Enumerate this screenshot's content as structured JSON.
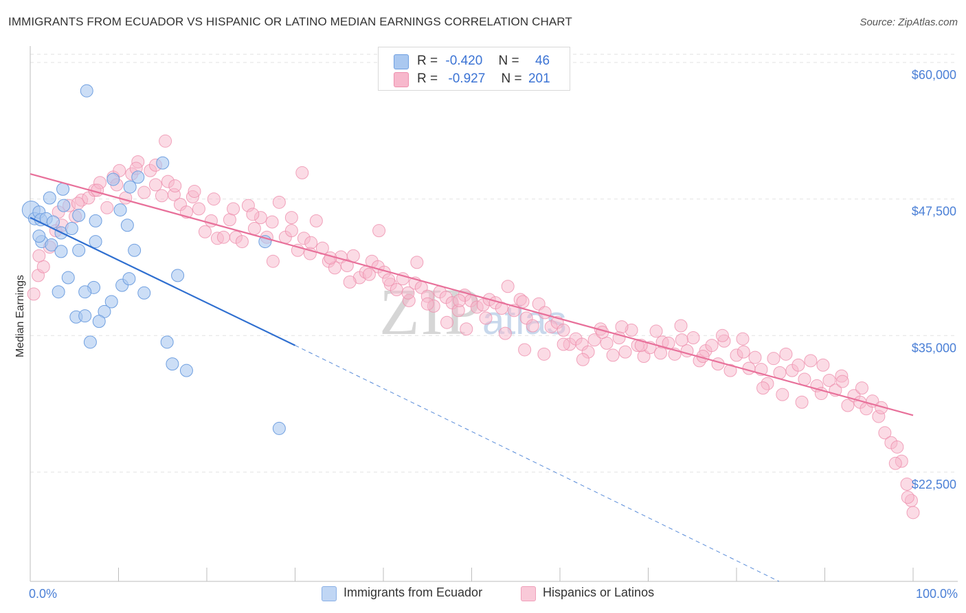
{
  "title": "IMMIGRANTS FROM ECUADOR VS HISPANIC OR LATINO MEDIAN EARNINGS CORRELATION CHART",
  "source": "Source: ZipAtlas.com",
  "watermark": {
    "main": "ZIP",
    "small": "atlas"
  },
  "legend": {
    "rows": [
      {
        "r_label": "R =",
        "r_value": "-0.420",
        "n_label": "N =",
        "n_value": "46"
      },
      {
        "r_label": "R =",
        "r_value": "-0.927",
        "n_label": "N =",
        "n_value": "201"
      }
    ]
  },
  "bottom_legend": [
    "Immigrants from Ecuador",
    "Hispanics or Latinos"
  ],
  "colors": {
    "blue_fill": "#aac8f0",
    "blue_stroke": "#6f9fe0",
    "blue_line": "#2f6fd0",
    "pink_fill": "#f7b8cc",
    "pink_stroke": "#ee8fad",
    "pink_line": "#e8709a",
    "tick_text": "#4a7fd6",
    "grid": "#e2e2e2"
  },
  "chart_data": {
    "type": "scatter",
    "title": "IMMIGRANTS FROM ECUADOR VS HISPANIC OR LATINO MEDIAN EARNINGS CORRELATION CHART",
    "xlabel": "",
    "ylabel": "Median Earnings",
    "xlim": [
      0,
      100
    ],
    "ylim": [
      12500,
      61500
    ],
    "x_tick_labels": [
      "0.0%",
      "100.0%"
    ],
    "y_ticks": [
      22500,
      35000,
      47500,
      60000
    ],
    "y_tick_labels": [
      "$22,500",
      "$35,000",
      "$47,500",
      "$60,000"
    ],
    "grid": "horizontal dashed",
    "legend_position": "top-center",
    "series": [
      {
        "name": "Immigrants from Ecuador",
        "r": -0.42,
        "n": 46,
        "trend": {
          "x0": 0,
          "y0": 45800,
          "x1": 30,
          "y1": 34100,
          "dashed_to_x": 97.5,
          "dashed_to_y": 7500
        },
        "points": [
          [
            0.1,
            46500
          ],
          [
            0.5,
            45700
          ],
          [
            1.0,
            46300
          ],
          [
            1.2,
            45600
          ],
          [
            1.8,
            45700
          ],
          [
            2.2,
            47600
          ],
          [
            3.7,
            48400
          ],
          [
            6.4,
            57400
          ],
          [
            15.0,
            50800
          ],
          [
            9.4,
            49300
          ],
          [
            11.3,
            48600
          ],
          [
            12.2,
            49500
          ],
          [
            3.8,
            46900
          ],
          [
            5.5,
            46000
          ],
          [
            1.3,
            43600
          ],
          [
            2.4,
            43300
          ],
          [
            3.5,
            44400
          ],
          [
            4.7,
            44800
          ],
          [
            7.4,
            45500
          ],
          [
            10.2,
            46500
          ],
          [
            11.0,
            45100
          ],
          [
            5.5,
            42800
          ],
          [
            7.4,
            43600
          ],
          [
            11.8,
            42800
          ],
          [
            26.6,
            43600
          ],
          [
            3.5,
            42700
          ],
          [
            4.3,
            40300
          ],
          [
            7.2,
            39400
          ],
          [
            6.2,
            39000
          ],
          [
            3.2,
            39000
          ],
          [
            10.4,
            39600
          ],
          [
            11.2,
            40200
          ],
          [
            12.9,
            38900
          ],
          [
            16.7,
            40500
          ],
          [
            9.2,
            38100
          ],
          [
            5.2,
            36700
          ],
          [
            6.2,
            36800
          ],
          [
            8.4,
            37200
          ],
          [
            7.8,
            36300
          ],
          [
            6.8,
            34400
          ],
          [
            15.5,
            34400
          ],
          [
            16.1,
            32400
          ],
          [
            17.7,
            31800
          ],
          [
            28.2,
            26500
          ],
          [
            1.0,
            44100
          ],
          [
            2.6,
            45400
          ]
        ]
      },
      {
        "name": "Hispanics or Latinos",
        "r": -0.927,
        "n": 201,
        "trend": {
          "x0": 0,
          "y0": 49800,
          "x1": 100,
          "y1": 27700
        },
        "points": [
          [
            0.4,
            38800
          ],
          [
            0.9,
            40500
          ],
          [
            1.5,
            41300
          ],
          [
            2.2,
            43100
          ],
          [
            2.9,
            44600
          ],
          [
            3.6,
            45100
          ],
          [
            4.4,
            46900
          ],
          [
            5.1,
            45900
          ],
          [
            5.8,
            47400
          ],
          [
            6.6,
            47600
          ],
          [
            7.3,
            48300
          ],
          [
            7.9,
            49000
          ],
          [
            8.7,
            46700
          ],
          [
            9.4,
            49500
          ],
          [
            10.1,
            50100
          ],
          [
            10.8,
            47600
          ],
          [
            11.5,
            49800
          ],
          [
            12.2,
            50900
          ],
          [
            12.9,
            48100
          ],
          [
            13.6,
            50100
          ],
          [
            14.2,
            48800
          ],
          [
            14.9,
            47800
          ],
          [
            15.6,
            49100
          ],
          [
            16.3,
            47900
          ],
          [
            17.0,
            47000
          ],
          [
            17.7,
            46300
          ],
          [
            18.4,
            47700
          ],
          [
            19.1,
            46600
          ],
          [
            19.8,
            44500
          ],
          [
            20.5,
            45500
          ],
          [
            21.2,
            43900
          ],
          [
            21.9,
            44000
          ],
          [
            22.6,
            45600
          ],
          [
            23.3,
            44000
          ],
          [
            24.0,
            43600
          ],
          [
            24.7,
            46900
          ],
          [
            25.4,
            44800
          ],
          [
            26.1,
            45800
          ],
          [
            26.8,
            44000
          ],
          [
            27.5,
            41800
          ],
          [
            28.2,
            47200
          ],
          [
            28.9,
            44000
          ],
          [
            29.6,
            45800
          ],
          [
            30.3,
            42800
          ],
          [
            31.0,
            43900
          ],
          [
            31.7,
            42500
          ],
          [
            32.4,
            45500
          ],
          [
            33.1,
            43000
          ],
          [
            33.8,
            41800
          ],
          [
            34.5,
            41200
          ],
          [
            35.2,
            42200
          ],
          [
            35.9,
            41400
          ],
          [
            36.6,
            42300
          ],
          [
            37.3,
            40300
          ],
          [
            38.0,
            40800
          ],
          [
            38.7,
            41800
          ],
          [
            39.4,
            41300
          ],
          [
            40.1,
            40800
          ],
          [
            40.8,
            39700
          ],
          [
            41.5,
            39200
          ],
          [
            42.2,
            40200
          ],
          [
            42.9,
            38200
          ],
          [
            43.6,
            39800
          ],
          [
            44.3,
            39400
          ],
          [
            45.0,
            38600
          ],
          [
            45.7,
            37700
          ],
          [
            46.4,
            39000
          ],
          [
            47.1,
            38500
          ],
          [
            47.8,
            38000
          ],
          [
            48.5,
            37300
          ],
          [
            49.2,
            38700
          ],
          [
            49.9,
            38200
          ],
          [
            50.6,
            37600
          ],
          [
            51.3,
            37800
          ],
          [
            52.0,
            38300
          ],
          [
            52.7,
            38000
          ],
          [
            53.4,
            37500
          ],
          [
            54.1,
            39500
          ],
          [
            54.8,
            37300
          ],
          [
            55.5,
            38300
          ],
          [
            56.2,
            36600
          ],
          [
            56.9,
            35900
          ],
          [
            57.6,
            37900
          ],
          [
            58.3,
            37100
          ],
          [
            59.0,
            35800
          ],
          [
            59.7,
            36200
          ],
          [
            60.4,
            35500
          ],
          [
            61.1,
            34200
          ],
          [
            61.8,
            34700
          ],
          [
            62.5,
            34200
          ],
          [
            63.2,
            33500
          ],
          [
            63.9,
            34600
          ],
          [
            64.6,
            35600
          ],
          [
            65.3,
            34300
          ],
          [
            66.0,
            33200
          ],
          [
            66.7,
            34800
          ],
          [
            67.4,
            33500
          ],
          [
            68.1,
            35500
          ],
          [
            68.8,
            34100
          ],
          [
            69.5,
            33100
          ],
          [
            70.2,
            33900
          ],
          [
            70.9,
            35400
          ],
          [
            71.6,
            34400
          ],
          [
            72.3,
            34300
          ],
          [
            73.0,
            33300
          ],
          [
            73.7,
            35900
          ],
          [
            74.4,
            33600
          ],
          [
            75.1,
            34800
          ],
          [
            75.8,
            32700
          ],
          [
            76.5,
            33600
          ],
          [
            77.2,
            34100
          ],
          [
            77.9,
            32400
          ],
          [
            78.6,
            34500
          ],
          [
            79.3,
            31800
          ],
          [
            80.0,
            33200
          ],
          [
            80.7,
            34700
          ],
          [
            81.4,
            32000
          ],
          [
            82.1,
            33000
          ],
          [
            82.8,
            31900
          ],
          [
            83.5,
            30600
          ],
          [
            84.2,
            32900
          ],
          [
            84.9,
            31600
          ],
          [
            85.6,
            33300
          ],
          [
            86.3,
            31800
          ],
          [
            87.0,
            32300
          ],
          [
            87.7,
            31000
          ],
          [
            88.4,
            32700
          ],
          [
            89.1,
            30400
          ],
          [
            89.8,
            32300
          ],
          [
            90.5,
            30900
          ],
          [
            91.2,
            30000
          ],
          [
            91.9,
            31300
          ],
          [
            92.6,
            28600
          ],
          [
            93.3,
            29500
          ],
          [
            94.0,
            28900
          ],
          [
            94.7,
            28300
          ],
          [
            95.4,
            29000
          ],
          [
            96.1,
            27600
          ],
          [
            96.8,
            26100
          ],
          [
            97.5,
            25200
          ],
          [
            98.2,
            24800
          ],
          [
            98.7,
            23500
          ],
          [
            99.3,
            21400
          ],
          [
            99.8,
            19900
          ],
          [
            100.0,
            18800
          ],
          [
            99.4,
            20200
          ],
          [
            98.0,
            23300
          ],
          [
            96.4,
            28400
          ],
          [
            94.2,
            30200
          ],
          [
            92.0,
            30800
          ],
          [
            89.6,
            29700
          ],
          [
            87.4,
            28900
          ],
          [
            85.2,
            29600
          ],
          [
            83.0,
            30200
          ],
          [
            80.8,
            33500
          ],
          [
            78.4,
            35000
          ],
          [
            76.2,
            33100
          ],
          [
            73.8,
            34600
          ],
          [
            71.4,
            33400
          ],
          [
            69.2,
            34100
          ],
          [
            67.0,
            35800
          ],
          [
            64.8,
            35300
          ],
          [
            62.6,
            32800
          ],
          [
            60.4,
            34200
          ],
          [
            58.2,
            33300
          ],
          [
            56.0,
            33700
          ],
          [
            53.8,
            35200
          ],
          [
            51.6,
            36600
          ],
          [
            49.4,
            35600
          ],
          [
            47.2,
            36200
          ],
          [
            45.0,
            37900
          ],
          [
            42.8,
            38900
          ],
          [
            40.6,
            40100
          ],
          [
            38.4,
            40600
          ],
          [
            36.2,
            39900
          ],
          [
            34.0,
            42100
          ],
          [
            31.8,
            43500
          ],
          [
            29.6,
            44600
          ],
          [
            27.4,
            45400
          ],
          [
            25.2,
            46100
          ],
          [
            23.0,
            46600
          ],
          [
            20.8,
            47500
          ],
          [
            18.6,
            48200
          ],
          [
            16.4,
            48700
          ],
          [
            14.2,
            50600
          ],
          [
            12.0,
            50300
          ],
          [
            9.8,
            48800
          ],
          [
            7.6,
            48300
          ],
          [
            5.4,
            47100
          ],
          [
            3.2,
            46300
          ],
          [
            1.0,
            42300
          ],
          [
            15.3,
            52800
          ],
          [
            30.8,
            49900
          ],
          [
            39.5,
            44600
          ],
          [
            43.8,
            41700
          ],
          [
            48.6,
            38200
          ],
          [
            55.8,
            38100
          ]
        ]
      }
    ]
  }
}
